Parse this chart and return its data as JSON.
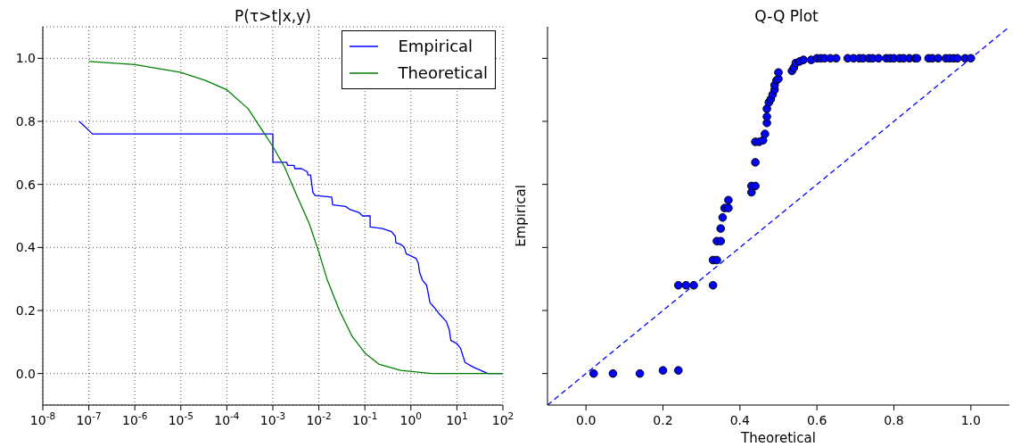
{
  "chart_data": [
    {
      "type": "line",
      "title": "P(τ>t|x,y)",
      "log": "x",
      "grid": true,
      "legend": "top right",
      "line_style": "solid",
      "xlim": [
        1e-08,
        100
      ],
      "xticks": [
        {
          "value": 1e-08,
          "label": "10$^{-8}$"
        },
        {
          "value": 1e-07,
          "label": "10$^{-7}$"
        },
        {
          "value": 1e-06,
          "label": "10$^{-6}$"
        },
        {
          "value": 1e-05,
          "label": "10$^{-5}$"
        },
        {
          "value": 0.0001,
          "label": "10$^{-4}$"
        },
        {
          "value": 0.001,
          "label": "10$^{-3}$"
        },
        {
          "value": 0.01,
          "label": "10$^{-2}$"
        },
        {
          "value": 0.1,
          "label": "10$^{-1}$"
        },
        {
          "value": 1,
          "label": "10$^{0}$"
        },
        {
          "value": 10,
          "label": "10$^{1}$"
        },
        {
          "value": 100,
          "label": "10$^{2}$"
        }
      ],
      "ylim": [
        -0.1,
        1.1
      ],
      "yticks": [
        {
          "value": 0,
          "label": "0.0"
        },
        0.2,
        0.4,
        0.6,
        0.8,
        {
          "value": 1,
          "label": "1.0"
        }
      ],
      "series": [
        {
          "name": "Empirical",
          "color": "#0000ff",
          "x": [
            6.2e-08,
            1.2e-07,
            0.001,
            0.001,
            0.002,
            0.0021,
            0.0029,
            0.003,
            0.0042,
            0.0056,
            0.0058,
            0.0066,
            0.0074,
            0.0083,
            0.019,
            0.02,
            0.038,
            0.048,
            0.076,
            0.089,
            0.13,
            0.13,
            0.24,
            0.38,
            0.46,
            0.47,
            0.6,
            0.72,
            0.79,
            1.3,
            1.45,
            1.55,
            1.8,
            2.2,
            2.6,
            3.2,
            4.1,
            5.9,
            6.8,
            7.4,
            10,
            12,
            15,
            23,
            47,
            100
          ],
          "values": [
            0.8,
            0.76,
            0.76,
            0.67,
            0.67,
            0.66,
            0.66,
            0.65,
            0.65,
            0.64,
            0.63,
            0.63,
            0.575,
            0.565,
            0.56,
            0.535,
            0.53,
            0.52,
            0.51,
            0.5,
            0.5,
            0.465,
            0.46,
            0.45,
            0.435,
            0.415,
            0.41,
            0.4,
            0.38,
            0.365,
            0.35,
            0.32,
            0.295,
            0.28,
            0.225,
            0.21,
            0.19,
            0.165,
            0.14,
            0.105,
            0.095,
            0.08,
            0.035,
            0.02,
            0.0,
            0.0
          ]
        },
        {
          "name": "Theoretical",
          "color": "#008000",
          "x": [
            1e-07,
            1e-06,
            1e-05,
            3.4e-05,
            0.0001,
            0.00029,
            0.00054,
            0.001,
            0.0018,
            0.0033,
            0.0062,
            0.01,
            0.015,
            0.028,
            0.052,
            0.1,
            0.2,
            0.6,
            2.8,
            100
          ],
          "values": [
            0.99,
            0.98,
            0.955,
            0.93,
            0.9,
            0.84,
            0.78,
            0.72,
            0.655,
            0.565,
            0.475,
            0.385,
            0.3,
            0.2,
            0.12,
            0.065,
            0.03,
            0.01,
            0.0,
            0.0
          ]
        }
      ]
    },
    {
      "type": "scatter",
      "title": "Q-Q Plot",
      "xlabel": "Theoretical",
      "ylabel": "Empirical",
      "grid": false,
      "tick_labels": "x",
      "xlim": [
        -0.1,
        1.1
      ],
      "xticks": [
        {
          "value": 0,
          "label": "0.0"
        },
        0.2,
        0.4,
        0.6,
        0.8,
        {
          "value": 1,
          "label": "1.0"
        }
      ],
      "ylim": [
        -0.1,
        1.1
      ],
      "yticks": [
        {
          "value": 0,
          "label": null
        },
        {
          "value": 0.2,
          "label": null
        },
        {
          "value": 0.4,
          "label": null
        },
        {
          "value": 0.6,
          "label": null
        },
        {
          "value": 0.8,
          "label": null
        },
        {
          "value": 1,
          "label": null
        }
      ],
      "series": [
        {
          "color": "#0000ff",
          "marker": "circle",
          "x": [
            0.02,
            0.07,
            0.14,
            0.2,
            0.24,
            0.24,
            0.26,
            0.28,
            0.33,
            0.33,
            0.34,
            0.34,
            0.35,
            0.35,
            0.355,
            0.36,
            0.37,
            0.37,
            0.43,
            0.43,
            0.44,
            0.44,
            0.44,
            0.45,
            0.46,
            0.465,
            0.47,
            0.47,
            0.47,
            0.475,
            0.48,
            0.485,
            0.49,
            0.49,
            0.495,
            0.5,
            0.5,
            0.535,
            0.54,
            0.545,
            0.555,
            0.565,
            0.585,
            0.6,
            0.61,
            0.62,
            0.635,
            0.65,
            0.68,
            0.695,
            0.71,
            0.72,
            0.735,
            0.745,
            0.76,
            0.78,
            0.79,
            0.8,
            0.815,
            0.825,
            0.84,
            0.855,
            0.86,
            0.89,
            0.9,
            0.915,
            0.935,
            0.945,
            0.955,
            0.965,
            0.985,
            1.0
          ],
          "values": [
            0.0,
            0.0,
            0.0,
            0.01,
            0.01,
            0.28,
            0.28,
            0.28,
            0.28,
            0.36,
            0.36,
            0.42,
            0.42,
            0.46,
            0.495,
            0.525,
            0.525,
            0.55,
            0.575,
            0.595,
            0.595,
            0.67,
            0.735,
            0.735,
            0.74,
            0.76,
            0.795,
            0.815,
            0.84,
            0.86,
            0.87,
            0.885,
            0.9,
            0.915,
            0.93,
            0.935,
            0.955,
            0.96,
            0.97,
            0.985,
            0.99,
            0.995,
            0.995,
            1.0,
            1.0,
            1.0,
            1.0,
            1.0,
            1.0,
            1.0,
            1.0,
            1.0,
            1.0,
            1.0,
            1.0,
            1.0,
            1.0,
            1.0,
            1.0,
            1.0,
            1.0,
            1.0,
            1.0,
            1.0,
            1.0,
            1.0,
            1.0,
            1.0,
            1.0,
            1.0,
            1.0,
            1.0
          ]
        },
        {
          "type": "line",
          "color": "#0000ff",
          "marker": "none",
          "line_style": "dashed",
          "x": [
            -0.1,
            1.1
          ],
          "values": [
            -0.1,
            1.1
          ]
        }
      ]
    }
  ]
}
